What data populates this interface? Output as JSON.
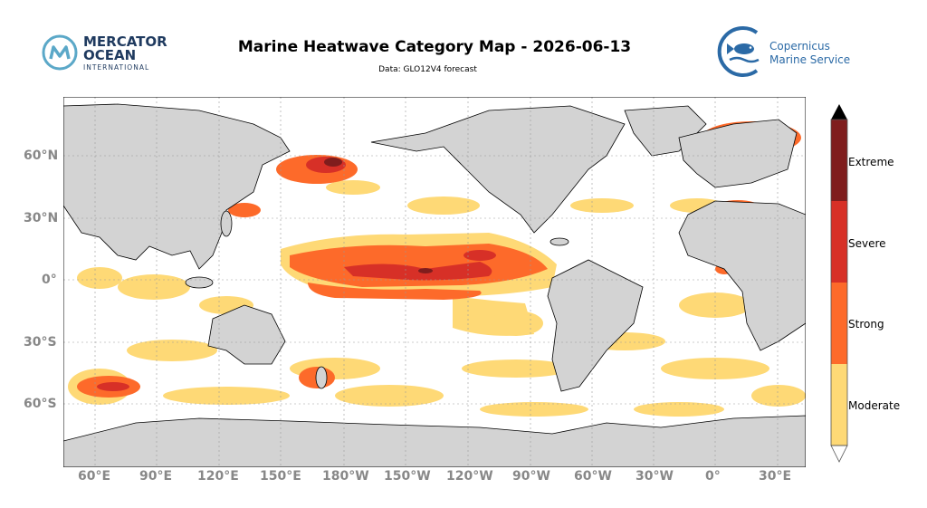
{
  "header": {
    "title": "Marine Heatwave Category Map - 2026-06-13",
    "subtitle": "Data: GLO12V4 forecast"
  },
  "logos": {
    "mercator": [
      "MERCATOR",
      "OCEAN",
      "INTERNATIONAL"
    ],
    "copernicus": [
      "Copernicus",
      "Marine Service"
    ]
  },
  "map": {
    "projection": "equirectangular",
    "lon_range": [
      40,
      410
    ],
    "lat_range": [
      -88,
      88
    ],
    "lat_ticks": [
      "60°N",
      "30°N",
      "0°",
      "30°S",
      "60°S"
    ],
    "lon_ticks": [
      "60°E",
      "90°E",
      "120°E",
      "150°E",
      "180°W",
      "150°W",
      "120°W",
      "90°W",
      "60°W",
      "30°W",
      "0°",
      "30°E"
    ],
    "gridlines": true
  },
  "legend": {
    "categories": [
      "Moderate",
      "Strong",
      "Severe",
      "Extreme"
    ],
    "colors": [
      "#fed976",
      "#fd6a2a",
      "#d73027",
      "#7f1d1d"
    ],
    "land_color": "#d3d3d3"
  }
}
